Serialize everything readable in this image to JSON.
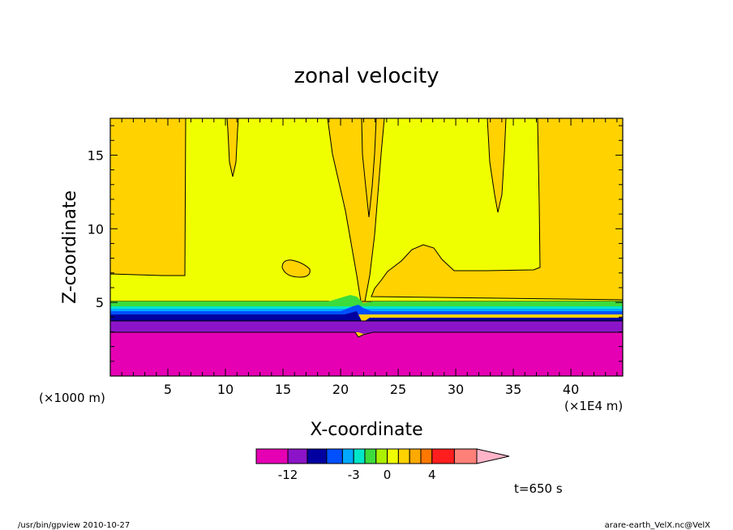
{
  "chart_data": {
    "type": "heatmap",
    "title": "zonal velocity",
    "xlabel": "X-coordinate",
    "ylabel": "Z-coordinate",
    "x_unit_left": "(×1000 m)",
    "x_unit_right": "(×1E4 m)",
    "xlim": [
      0,
      44.5
    ],
    "ylim": [
      0,
      17.5
    ],
    "x_ticks": [
      "5",
      "10",
      "15",
      "20",
      "25",
      "30",
      "35",
      "40"
    ],
    "x_tick_values": [
      5,
      10,
      15,
      20,
      25,
      30,
      35,
      40
    ],
    "y_ticks": [
      "5",
      "10",
      "15"
    ],
    "y_tick_values": [
      5,
      10,
      15
    ],
    "levels": [
      {
        "lower": -20,
        "upper": -12,
        "color": "#e600b4"
      },
      {
        "lower": -12,
        "upper": -9,
        "color": "#8c14c8"
      },
      {
        "lower": -9,
        "upper": -6,
        "color": "#0000a0"
      },
      {
        "lower": -6,
        "upper": -4,
        "color": "#0050ff"
      },
      {
        "lower": -4,
        "upper": -3,
        "color": "#00aaff"
      },
      {
        "lower": -3,
        "upper": -2,
        "color": "#00e6c8"
      },
      {
        "lower": -2,
        "upper": -1,
        "color": "#3cdc3c"
      },
      {
        "lower": -1,
        "upper": 0,
        "color": "#aaf000"
      },
      {
        "lower": 0,
        "upper": 1,
        "color": "#f0ff00"
      },
      {
        "lower": 1,
        "upper": 2,
        "color": "#ffd200"
      },
      {
        "lower": 2,
        "upper": 3,
        "color": "#ffaa00"
      },
      {
        "lower": 3,
        "upper": 4,
        "color": "#ff7800"
      },
      {
        "lower": 4,
        "upper": 8,
        "color": "#ff1e1e"
      },
      {
        "lower": 8,
        "upper": 12,
        "color": "#ff8078"
      },
      {
        "lower": 12,
        "upper": null,
        "color": "#ffb4c8"
      }
    ],
    "colorbar_labels": [
      "-12",
      "-3",
      "0",
      "4"
    ],
    "regions": {
      "bottom_layer": {
        "z_top": 3.0,
        "level": "-20 to -12"
      },
      "purple_layer": {
        "z_top": 3.9,
        "level": "-12 to -9"
      },
      "blue_layers_top": 4.9,
      "yellow_band_top": 7.0,
      "upper_region_level": "1 to 2"
    }
  },
  "annotations": {
    "time": "t=650 s",
    "footer_left": "/usr/bin/gpview  2010-10-27",
    "footer_right": "arare-earth_VelX.nc@VelX"
  }
}
